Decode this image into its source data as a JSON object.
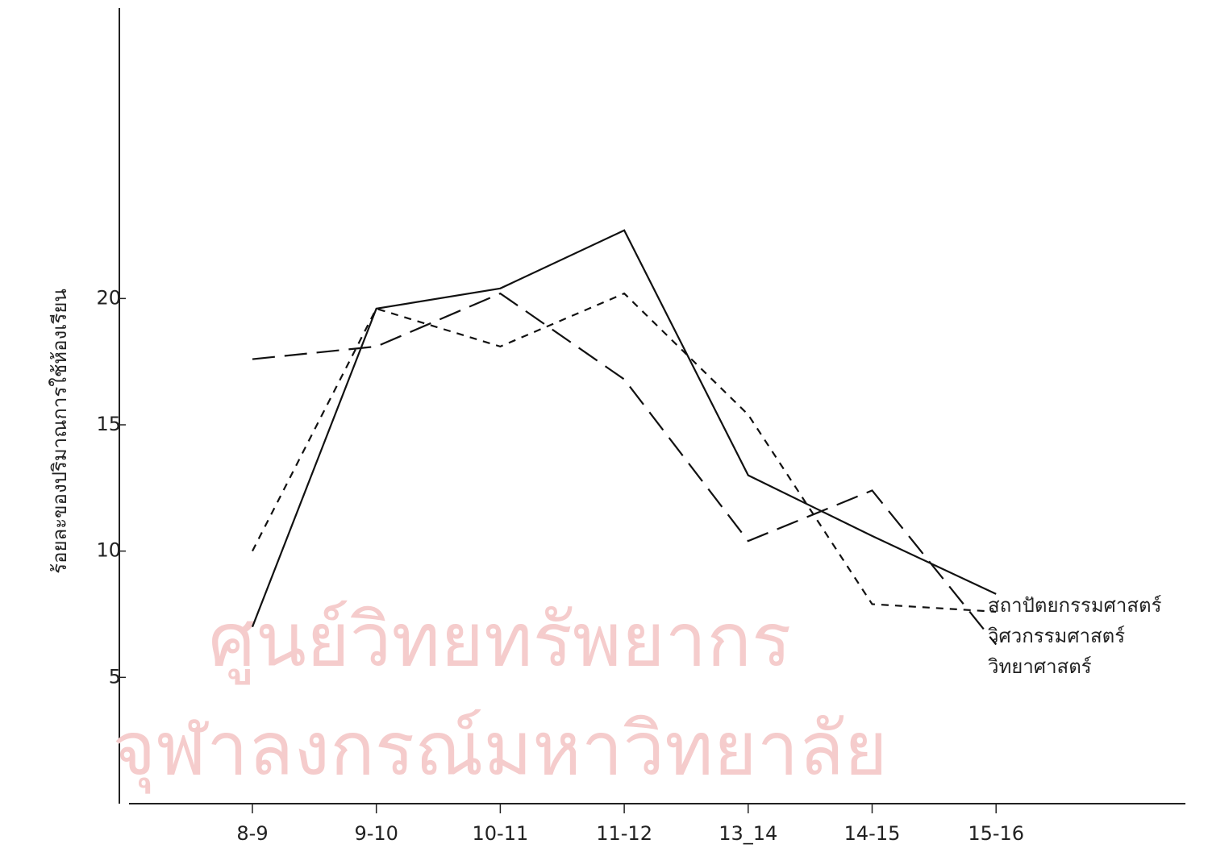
{
  "chart_data": {
    "type": "line",
    "ylabel": "ร้อยละของปริมาณการใช้ห้องเรียน",
    "categories": [
      "8-9",
      "9-10",
      "10-11",
      "11-12",
      "13_14",
      "14-15",
      "15-16"
    ],
    "series": [
      {
        "name": "สถาปัตยกรรมศาสตร์",
        "color": "#111111",
        "linestyle": "solid",
        "values": [
          7.0,
          19.6,
          20.4,
          22.7,
          13.0,
          10.6,
          8.3
        ]
      },
      {
        "name": "วิศวกรรมศาสตร์",
        "color": "#111111",
        "linestyle": "short-dash",
        "values": [
          10.0,
          19.6,
          18.1,
          20.2,
          15.4,
          7.9,
          7.6
        ]
      },
      {
        "name": "วิทยาศาสตร์",
        "color": "#111111",
        "linestyle": "long-dash",
        "values": [
          17.6,
          18.1,
          20.2,
          16.8,
          10.4,
          12.4,
          6.3
        ]
      }
    ],
    "ylim": [
      0,
      31.5
    ],
    "yticks": [
      5,
      10,
      15,
      20
    ],
    "grid": false,
    "watermark": [
      "ศูนย์วิทยทรัพยากร",
      "จุฬาลงกรณ์มหาวิทยาลัย"
    ]
  }
}
